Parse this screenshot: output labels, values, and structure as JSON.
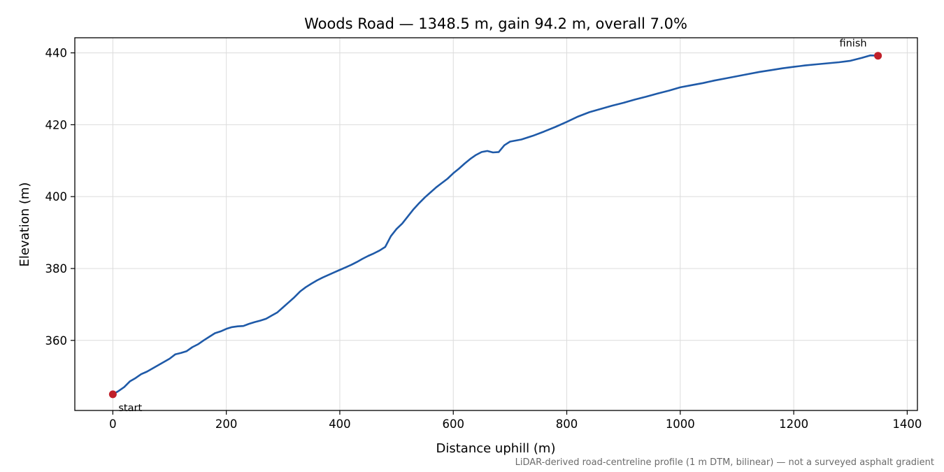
{
  "chart_data": {
    "type": "line",
    "title": "Woods Road — 1348.5 m, gain 94.2 m, overall 7.0%",
    "xlabel": "Distance uphill (m)",
    "ylabel": "Elevation (m)",
    "xlim": [
      -67,
      1418
    ],
    "ylim": [
      340.5,
      444.2
    ],
    "xticks": [
      0,
      200,
      400,
      600,
      800,
      1000,
      1200,
      1400
    ],
    "yticks": [
      360,
      380,
      400,
      420,
      440
    ],
    "grid": true,
    "series": [
      {
        "color": "#1f5aa8",
        "x": [
          0,
          10,
          20,
          30,
          40,
          50,
          60,
          70,
          80,
          90,
          100,
          110,
          120,
          130,
          140,
          150,
          160,
          170,
          180,
          190,
          200,
          210,
          220,
          230,
          240,
          250,
          260,
          270,
          280,
          290,
          300,
          310,
          320,
          330,
          340,
          350,
          360,
          370,
          380,
          390,
          400,
          410,
          420,
          430,
          440,
          450,
          460,
          470,
          480,
          490,
          500,
          510,
          520,
          530,
          540,
          550,
          560,
          570,
          580,
          590,
          600,
          610,
          620,
          630,
          640,
          650,
          660,
          670,
          680,
          690,
          700,
          720,
          740,
          760,
          780,
          800,
          820,
          840,
          860,
          880,
          900,
          920,
          940,
          960,
          980,
          1000,
          1020,
          1040,
          1060,
          1080,
          1100,
          1120,
          1140,
          1160,
          1180,
          1200,
          1220,
          1240,
          1260,
          1280,
          1300,
          1320,
          1335,
          1348.5
        ],
        "y": [
          345.0,
          345.9,
          347.0,
          348.6,
          349.5,
          350.6,
          351.3,
          352.2,
          353.1,
          354.0,
          354.9,
          356.1,
          356.5,
          357.0,
          358.1,
          358.9,
          360.0,
          361.0,
          362.0,
          362.5,
          363.2,
          363.7,
          363.9,
          364.0,
          364.6,
          365.1,
          365.5,
          366.0,
          366.9,
          367.8,
          369.2,
          370.6,
          372.0,
          373.6,
          374.8,
          375.8,
          376.7,
          377.5,
          378.2,
          378.9,
          379.6,
          380.3,
          381.0,
          381.8,
          382.7,
          383.5,
          384.2,
          385.0,
          386.0,
          389.0,
          391.0,
          392.5,
          394.5,
          396.5,
          398.2,
          399.8,
          401.2,
          402.6,
          403.8,
          405.0,
          406.5,
          407.8,
          409.2,
          410.5,
          411.6,
          412.4,
          412.7,
          412.3,
          412.4,
          414.3,
          415.3,
          415.9,
          416.9,
          418.1,
          419.4,
          420.8,
          422.3,
          423.5,
          424.4,
          425.3,
          426.1,
          427.0,
          427.8,
          428.7,
          429.5,
          430.4,
          431.0,
          431.6,
          432.3,
          432.9,
          433.5,
          434.1,
          434.7,
          435.2,
          435.7,
          436.1,
          436.5,
          436.8,
          437.1,
          437.4,
          437.8,
          438.6,
          439.3,
          439.2
        ]
      }
    ],
    "markers": [
      {
        "x": 0,
        "y": 345.0,
        "label": "start",
        "color": "#c0202a"
      },
      {
        "x": 1348.5,
        "y": 439.2,
        "label": "finish",
        "color": "#c0202a"
      }
    ],
    "footnote": "LiDAR-derived road-centreline profile (1 m DTM, bilinear) — not a surveyed asphalt gradient"
  }
}
